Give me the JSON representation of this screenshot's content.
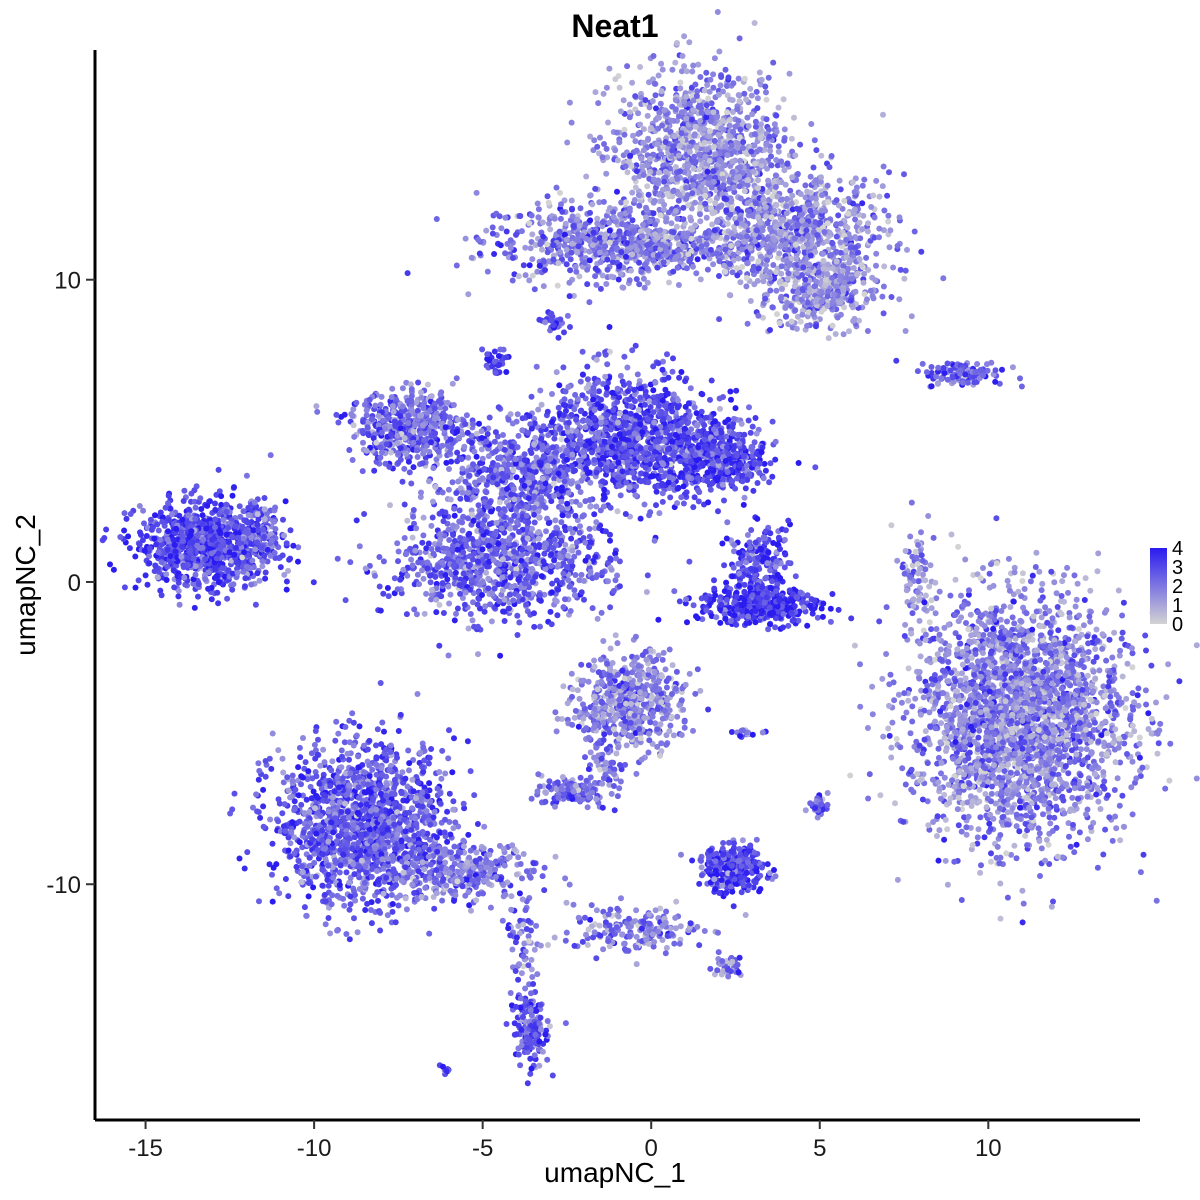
{
  "chart_data": {
    "type": "scatter",
    "title": "Neat1",
    "xlabel": "umapNC_1",
    "ylabel": "umapNC_2",
    "xlim": [
      -16.5,
      14.5
    ],
    "ylim": [
      -17.8,
      17.6
    ],
    "x_ticks": [
      -15,
      -10,
      -5,
      0,
      5,
      10
    ],
    "x_tick_labels": [
      "-15",
      "-10",
      "-5",
      "0",
      "5",
      "10"
    ],
    "y_ticks": [
      -10,
      0,
      10
    ],
    "y_tick_labels": [
      "-10",
      "0",
      "10"
    ],
    "grid": false,
    "legend_position": "right",
    "color_scale": {
      "low": "#d3d3d3",
      "high": "#2a1bf0",
      "range": [
        0,
        4
      ],
      "ticks": [
        0,
        1,
        2,
        3,
        4
      ],
      "tick_labels": [
        "0",
        "1",
        "2",
        "3",
        "4"
      ]
    },
    "clusters": [
      {
        "name": "top-arm-left",
        "cx": -1.8,
        "cy": 11.3,
        "sx": 1.6,
        "sy": 0.7,
        "n": 500,
        "level": 2.0
      },
      {
        "name": "top-bridge",
        "cx": 0.4,
        "cy": 11.0,
        "sx": 1.1,
        "sy": 0.35,
        "n": 220,
        "level": 1.8
      },
      {
        "name": "top-upper",
        "cx": 1.5,
        "cy": 14.2,
        "sx": 1.3,
        "sy": 1.3,
        "n": 1100,
        "level": 1.5
      },
      {
        "name": "top-right",
        "cx": 4.2,
        "cy": 11.6,
        "sx": 1.4,
        "sy": 0.9,
        "n": 800,
        "level": 1.6
      },
      {
        "name": "top-tail",
        "cx": 5.0,
        "cy": 9.6,
        "sx": 0.9,
        "sy": 0.6,
        "n": 350,
        "level": 1.5
      },
      {
        "name": "small-top-mid",
        "cx": -2.9,
        "cy": 8.6,
        "sx": 0.18,
        "sy": 0.2,
        "n": 30,
        "level": 3.2
      },
      {
        "name": "small-7",
        "cx": -4.6,
        "cy": 7.3,
        "sx": 0.2,
        "sy": 0.25,
        "n": 30,
        "level": 3.0
      },
      {
        "name": "center-left-arm",
        "cx": -7.2,
        "cy": 5.1,
        "sx": 0.9,
        "sy": 0.6,
        "n": 500,
        "level": 2.3
      },
      {
        "name": "center-core",
        "cx": -4.0,
        "cy": 3.4,
        "sx": 1.2,
        "sy": 0.9,
        "n": 600,
        "level": 2.4
      },
      {
        "name": "center-bottom-lobe",
        "cx": -4.6,
        "cy": 0.6,
        "sx": 1.6,
        "sy": 0.9,
        "n": 900,
        "level": 2.5
      },
      {
        "name": "center-right-lobe",
        "cx": -0.7,
        "cy": 4.8,
        "sx": 1.3,
        "sy": 1.1,
        "n": 1000,
        "level": 2.8
      },
      {
        "name": "center-right-tail",
        "cx": 1.8,
        "cy": 4.1,
        "sx": 0.9,
        "sy": 0.6,
        "n": 500,
        "level": 3.0
      },
      {
        "name": "left-blob",
        "cx": -13.2,
        "cy": 1.2,
        "sx": 1.0,
        "sy": 0.7,
        "n": 900,
        "level": 3.0
      },
      {
        "name": "left-arm",
        "cx": -11.7,
        "cy": 1.6,
        "sx": 0.4,
        "sy": 0.6,
        "n": 120,
        "level": 2.4
      },
      {
        "name": "mid-small-upper",
        "cx": 3.2,
        "cy": 0.6,
        "sx": 0.45,
        "sy": 0.6,
        "n": 200,
        "level": 3.0
      },
      {
        "name": "mid-small-arc",
        "cx": 3.2,
        "cy": -0.8,
        "sx": 0.9,
        "sy": 0.3,
        "n": 400,
        "level": 3.5
      },
      {
        "name": "right-upper-arm",
        "cx": 9.3,
        "cy": 6.9,
        "sx": 0.6,
        "sy": 0.2,
        "n": 120,
        "level": 2.5
      },
      {
        "name": "right-stem",
        "cx": 7.9,
        "cy": 0.0,
        "sx": 0.2,
        "sy": 0.8,
        "n": 80,
        "level": 1.5
      },
      {
        "name": "right-blob",
        "cx": 10.9,
        "cy": -4.5,
        "sx": 1.6,
        "sy": 2.0,
        "n": 2600,
        "level": 1.8
      },
      {
        "name": "lower-center",
        "cx": -0.6,
        "cy": -4.0,
        "sx": 0.8,
        "sy": 0.8,
        "n": 550,
        "level": 1.7
      },
      {
        "name": "lower-center-stem",
        "cx": -1.4,
        "cy": -6.0,
        "sx": 0.3,
        "sy": 0.6,
        "n": 80,
        "level": 2.0
      },
      {
        "name": "lower-center-left",
        "cx": -2.4,
        "cy": -6.9,
        "sx": 0.45,
        "sy": 0.25,
        "n": 120,
        "level": 2.4
      },
      {
        "name": "lower-left-blob",
        "cx": -8.5,
        "cy": -8.0,
        "sx": 1.3,
        "sy": 1.3,
        "n": 1500,
        "level": 2.6
      },
      {
        "name": "lower-left-tail",
        "cx": -5.7,
        "cy": -9.6,
        "sx": 1.2,
        "sy": 0.5,
        "n": 300,
        "level": 2.0
      },
      {
        "name": "lower-stalk",
        "cx": -3.8,
        "cy": -12.0,
        "sx": 0.2,
        "sy": 0.9,
        "n": 60,
        "level": 2.2
      },
      {
        "name": "lower-tip",
        "cx": -3.6,
        "cy": -14.8,
        "sx": 0.3,
        "sy": 0.6,
        "n": 150,
        "level": 2.6
      },
      {
        "name": "small-isolated-1",
        "cx": -6.1,
        "cy": -16.1,
        "sx": 0.1,
        "sy": 0.08,
        "n": 10,
        "level": 3.0
      },
      {
        "name": "small-blob-right",
        "cx": 2.4,
        "cy": -9.5,
        "sx": 0.5,
        "sy": 0.4,
        "n": 250,
        "level": 3.2
      },
      {
        "name": "lower-branch",
        "cx": -0.5,
        "cy": -11.5,
        "sx": 1.0,
        "sy": 0.4,
        "n": 180,
        "level": 1.8
      },
      {
        "name": "lower-branch-right",
        "cx": 2.2,
        "cy": -12.7,
        "sx": 0.3,
        "sy": 0.2,
        "n": 40,
        "level": 2.0
      },
      {
        "name": "small-5-7",
        "cx": 5.0,
        "cy": -7.3,
        "sx": 0.18,
        "sy": 0.18,
        "n": 30,
        "level": 2.6
      },
      {
        "name": "small-3-5",
        "cx": 2.8,
        "cy": -5.0,
        "sx": 0.2,
        "sy": 0.08,
        "n": 15,
        "level": 2.2
      }
    ]
  }
}
